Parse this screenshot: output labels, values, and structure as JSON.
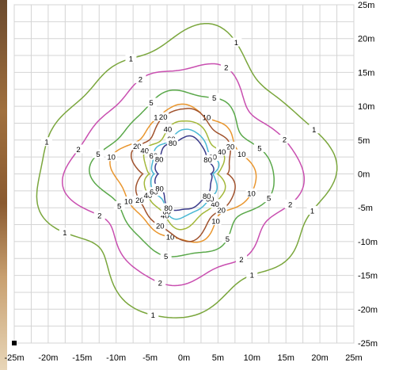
{
  "chart_data": {
    "type": "contour",
    "title": "",
    "xlabel": "",
    "ylabel": "",
    "xlim": [
      -25,
      25
    ],
    "ylim": [
      -25,
      25
    ],
    "grid": true,
    "x_ticks": [
      "-25m",
      "-20m",
      "-15m",
      "-10m",
      "-5m",
      "0m",
      "5m",
      "10m",
      "15m",
      "20m",
      "25m"
    ],
    "y_ticks": [
      "25m",
      "20m",
      "15m",
      "10m",
      "5m",
      "0m",
      "-5m",
      "-10m",
      "-15m",
      "-20m",
      "-25m"
    ],
    "levels": [
      {
        "value": 1,
        "label": "1",
        "color": "#7aa63c",
        "radius": 19.5
      },
      {
        "value": 2,
        "label": "2",
        "color": "#c94fb0",
        "radius": 15.2
      },
      {
        "value": 5,
        "label": "5",
        "color": "#5aa84a",
        "radius": 11.6
      },
      {
        "value": 10,
        "label": "10",
        "color": "#e9962e",
        "radius": 9.3
      },
      {
        "value": 20,
        "label": "20",
        "color": "#a0522d",
        "radius": 7.4
      },
      {
        "value": 40,
        "label": "40",
        "color": "#a3b83a",
        "radius": 6.0
      },
      {
        "value": 60,
        "label": "60",
        "color": "#49b8d4",
        "radius": 5.0
      },
      {
        "value": 80,
        "label": "80",
        "color": "#3a3a8a",
        "radius": 4.3
      }
    ]
  }
}
